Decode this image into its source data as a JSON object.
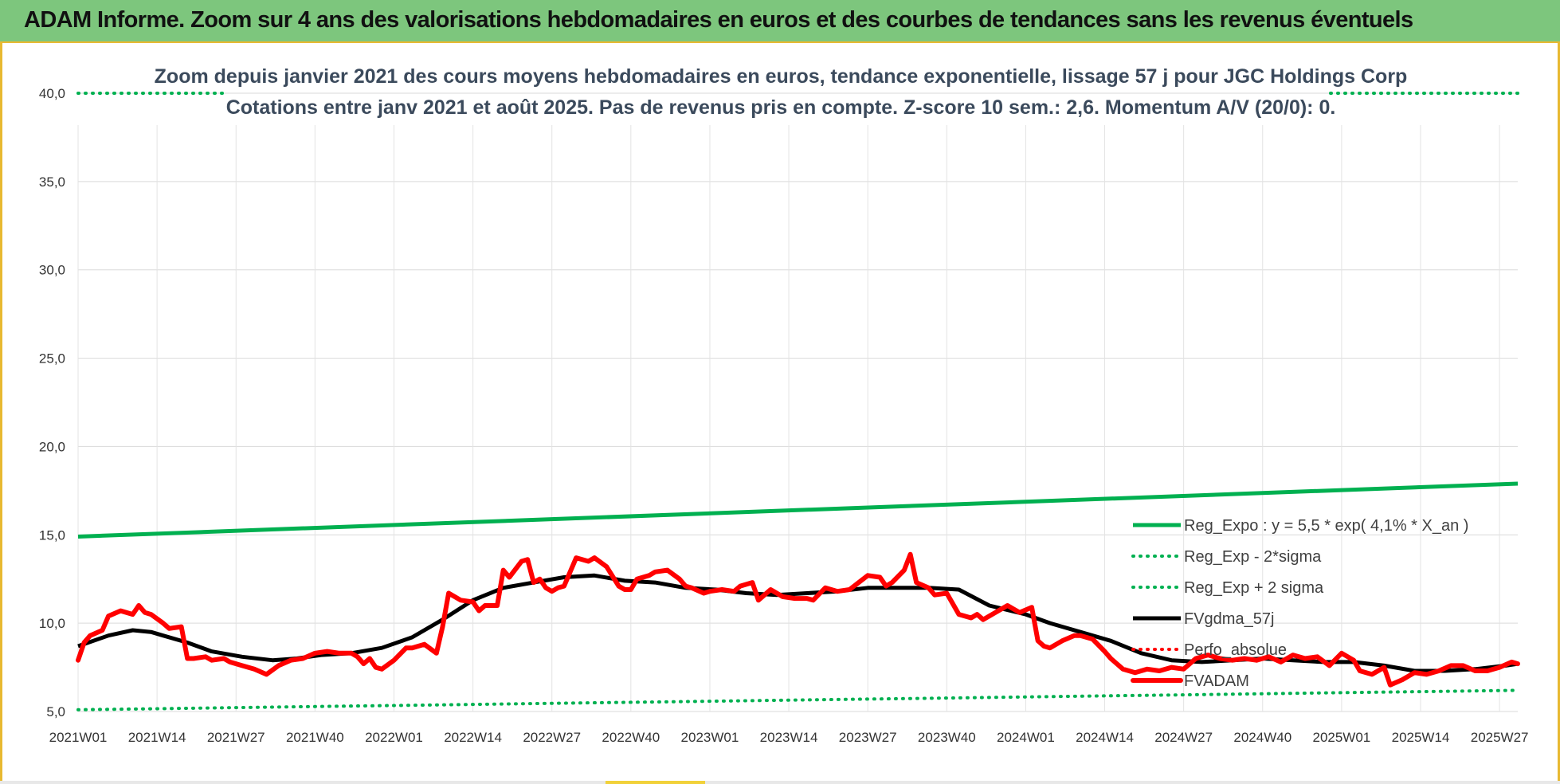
{
  "header": {
    "title": "ADAM Informe. Zoom sur 4 ans des valorisations hebdomadaires en euros et des courbes de tendances sans les revenus éventuels"
  },
  "chart_data": {
    "type": "line",
    "title": "Zoom depuis janvier 2021 des cours moyens hebdomadaires en euros, tendance exponentielle, lissage 57 j pour JGC Holdings Corp",
    "subtitle": "Cotations entre janv 2021 et août 2025.  Pas de revenus pris en compte. Z-score 10 sem.: 2,6. Momentum A/V (20/0): 0.",
    "ylim": [
      5,
      40
    ],
    "yticks": [
      "5,0",
      "10,0",
      "15,0",
      "20,0",
      "25,0",
      "30,0",
      "35,0",
      "40,0"
    ],
    "xticks": [
      "2021W01",
      "2021W14",
      "2021W27",
      "2021W40",
      "2022W01",
      "2022W14",
      "2022W27",
      "2022W40",
      "2023W01",
      "2023W14",
      "2023W27",
      "2023W40",
      "2024W01",
      "2024W14",
      "2024W27",
      "2024W40",
      "2025W01",
      "2025W14",
      "2025W27"
    ],
    "grid": true,
    "legend_position": "right",
    "series": [
      {
        "name": "Reg_Expo : y = 5,5 * exp( 4,1% *  X_an )",
        "color": "#00b050",
        "style": "solid",
        "x": [
          0,
          237
        ],
        "y": [
          14.9,
          17.9
        ]
      },
      {
        "name": "Reg_Exp - 2*sigma",
        "color": "#00b050",
        "style": "dotted",
        "x": [
          0,
          237
        ],
        "y": [
          5.1,
          6.2
        ]
      },
      {
        "name": "Reg_Exp + 2 sigma",
        "color": "#00b050",
        "style": "dotted",
        "x": [
          0,
          237
        ],
        "y": [
          40.0,
          40.0
        ]
      },
      {
        "name": "FVgdma_57j",
        "color": "#000000",
        "style": "solid",
        "x": [
          0,
          5,
          9,
          12,
          14,
          18,
          22,
          27,
          32,
          36,
          40,
          45,
          50,
          55,
          60,
          65,
          70,
          75,
          80,
          85,
          90,
          95,
          100,
          105,
          110,
          115,
          120,
          125,
          130,
          135,
          140,
          145,
          150,
          156,
          160,
          165,
          170,
          175,
          180,
          185,
          190,
          195,
          200,
          205,
          210,
          215,
          220,
          225,
          230,
          235,
          237
        ],
        "y": [
          8.7,
          9.3,
          9.6,
          9.5,
          9.3,
          8.9,
          8.4,
          8.1,
          7.9,
          8.0,
          8.2,
          8.3,
          8.6,
          9.2,
          10.2,
          11.3,
          12.0,
          12.3,
          12.6,
          12.7,
          12.4,
          12.3,
          12.0,
          11.9,
          11.7,
          11.6,
          11.7,
          11.8,
          12.0,
          12.0,
          12.0,
          11.9,
          11.0,
          10.5,
          10.0,
          9.5,
          9.0,
          8.3,
          7.9,
          7.8,
          7.9,
          8.0,
          7.9,
          7.8,
          7.8,
          7.6,
          7.3,
          7.3,
          7.4,
          7.6,
          7.7
        ]
      },
      {
        "name": "Perfo_absolue",
        "color": "#ff0000",
        "style": "dotted",
        "x": [],
        "y": []
      },
      {
        "name": "FVADAM",
        "color": "#ff0000",
        "style": "solid-thick",
        "x": [
          0,
          1,
          2,
          4,
          5,
          7,
          9,
          10,
          11,
          12,
          14,
          15,
          17,
          18,
          19,
          21,
          22,
          24,
          25,
          27,
          29,
          31,
          33,
          35,
          37,
          39,
          41,
          43,
          45,
          46,
          47,
          48,
          49,
          50,
          52,
          54,
          55,
          57,
          59,
          60,
          61,
          63,
          65,
          66,
          67,
          69,
          70,
          71,
          73,
          74,
          75,
          76,
          77,
          78,
          79,
          80,
          82,
          84,
          85,
          87,
          89,
          90,
          91,
          92,
          94,
          95,
          97,
          99,
          100,
          101,
          103,
          104,
          106,
          108,
          109,
          110,
          111,
          112,
          114,
          116,
          118,
          120,
          121,
          123,
          125,
          127,
          130,
          132,
          133,
          134,
          136,
          137,
          138,
          140,
          141,
          143,
          145,
          147,
          148,
          149,
          151,
          153,
          155,
          157,
          158,
          159,
          160,
          162,
          164,
          165,
          167,
          169,
          170,
          172,
          174,
          176,
          178,
          180,
          182,
          184,
          186,
          188,
          190,
          192,
          194,
          196,
          198,
          200,
          202,
          204,
          206,
          208,
          210,
          211,
          213,
          215,
          216,
          218,
          220,
          222,
          224,
          226,
          228,
          230,
          232,
          234,
          236,
          237
        ],
        "y": [
          7.9,
          8.9,
          9.3,
          9.6,
          10.4,
          10.7,
          10.5,
          11.0,
          10.6,
          10.5,
          10.0,
          9.7,
          9.8,
          8.0,
          8.0,
          8.1,
          7.9,
          8.0,
          7.8,
          7.6,
          7.4,
          7.1,
          7.6,
          7.9,
          8.0,
          8.3,
          8.4,
          8.3,
          8.3,
          8.1,
          7.7,
          8.0,
          7.5,
          7.4,
          7.9,
          8.6,
          8.6,
          8.8,
          8.3,
          9.8,
          11.7,
          11.3,
          11.2,
          10.7,
          11.0,
          11.0,
          13.0,
          12.6,
          13.5,
          13.6,
          12.3,
          12.5,
          12.0,
          11.8,
          12.0,
          12.1,
          13.7,
          13.5,
          13.7,
          13.2,
          12.1,
          11.9,
          11.9,
          12.5,
          12.7,
          12.9,
          13.0,
          12.5,
          12.1,
          12.0,
          11.7,
          11.8,
          11.9,
          11.8,
          12.1,
          12.2,
          12.3,
          11.3,
          11.9,
          11.5,
          11.4,
          11.4,
          11.3,
          12.0,
          11.8,
          11.9,
          12.7,
          12.6,
          12.1,
          12.3,
          13.0,
          13.9,
          12.3,
          12.0,
          11.6,
          11.7,
          10.5,
          10.3,
          10.5,
          10.2,
          10.6,
          11.0,
          10.6,
          10.9,
          9.0,
          8.7,
          8.6,
          9.0,
          9.3,
          9.3,
          9.1,
          8.4,
          8.0,
          7.4,
          7.2,
          7.4,
          7.3,
          7.5,
          7.4,
          8.0,
          8.2,
          8.0,
          7.9,
          8.0,
          7.9,
          8.1,
          7.8,
          8.2,
          8.0,
          8.1,
          7.6,
          8.3,
          7.9,
          7.3,
          7.1,
          7.5,
          6.5,
          6.8,
          7.2,
          7.1,
          7.3,
          7.6,
          7.6,
          7.3,
          7.3,
          7.5,
          7.8,
          7.7
        ]
      }
    ]
  }
}
